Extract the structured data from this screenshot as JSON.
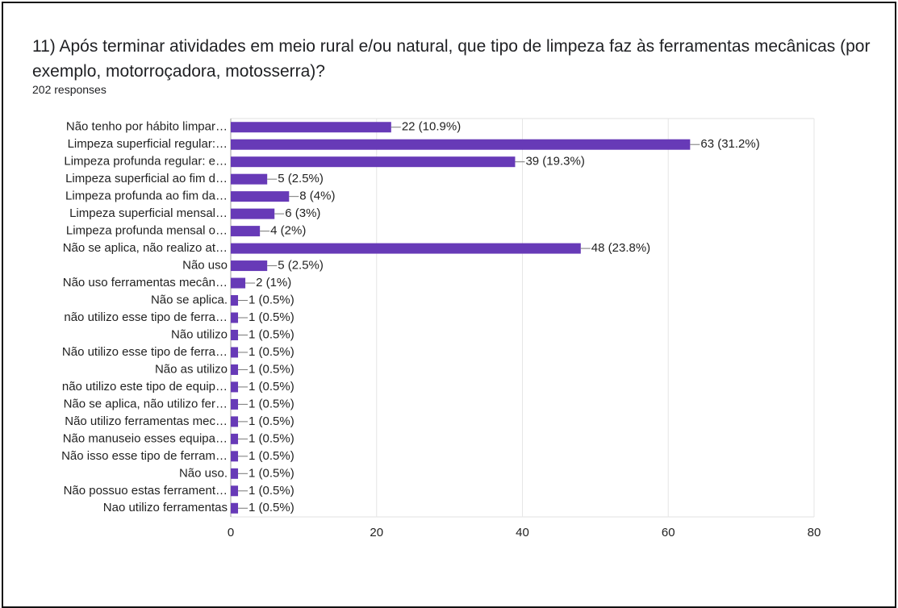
{
  "chart_data": {
    "type": "bar",
    "orientation": "horizontal",
    "title": "11) Após terminar atividades em meio rural e/ou natural, que tipo de limpeza faz às ferramentas mecânicas (por exemplo, motorroçadora, motosserra)?",
    "subtitle": "202 responses",
    "categories": [
      "Não tenho por hábito limpar…",
      "Limpeza superficial regular:…",
      "Limpeza profunda regular: e…",
      "Limpeza superficial ao fim d…",
      "Limpeza profunda ao fim da…",
      "Limpeza superficial mensal…",
      "Limpeza profunda mensal o…",
      "Não se aplica, não realizo at…",
      "Não uso",
      "Não uso ferramentas mecân…",
      "Não se aplica.",
      "não utilizo esse tipo de ferra…",
      "Não utilizo",
      "Não utilizo esse tipo de ferra…",
      "Não as utilizo",
      "não utilizo este tipo de equip…",
      "Não se aplica, não utilizo fer…",
      "Não utilizo ferramentas mec…",
      "Não manuseio esses equipa…",
      "Não isso esse tipo de ferram…",
      "Não uso.",
      "Não possuo estas ferrament…",
      "Nao utilizo ferramentas"
    ],
    "values": [
      22,
      63,
      39,
      5,
      8,
      6,
      4,
      48,
      5,
      2,
      1,
      1,
      1,
      1,
      1,
      1,
      1,
      1,
      1,
      1,
      1,
      1,
      1
    ],
    "value_labels": [
      "22 (10.9%)",
      "63 (31.2%)",
      "39 (19.3%)",
      "5 (2.5%)",
      "8 (4%)",
      "6 (3%)",
      "4 (2%)",
      "48 (23.8%)",
      "5 (2.5%)",
      "2 (1%)",
      "1 (0.5%)",
      "1 (0.5%)",
      "1 (0.5%)",
      "1 (0.5%)",
      "1 (0.5%)",
      "1 (0.5%)",
      "1 (0.5%)",
      "1 (0.5%)",
      "1 (0.5%)",
      "1 (0.5%)",
      "1 (0.5%)",
      "1 (0.5%)",
      "1 (0.5%)"
    ],
    "color": "#673ab7",
    "xlim": [
      0,
      80
    ],
    "xticks": [
      0,
      20,
      40,
      60,
      80
    ],
    "grid": true
  }
}
